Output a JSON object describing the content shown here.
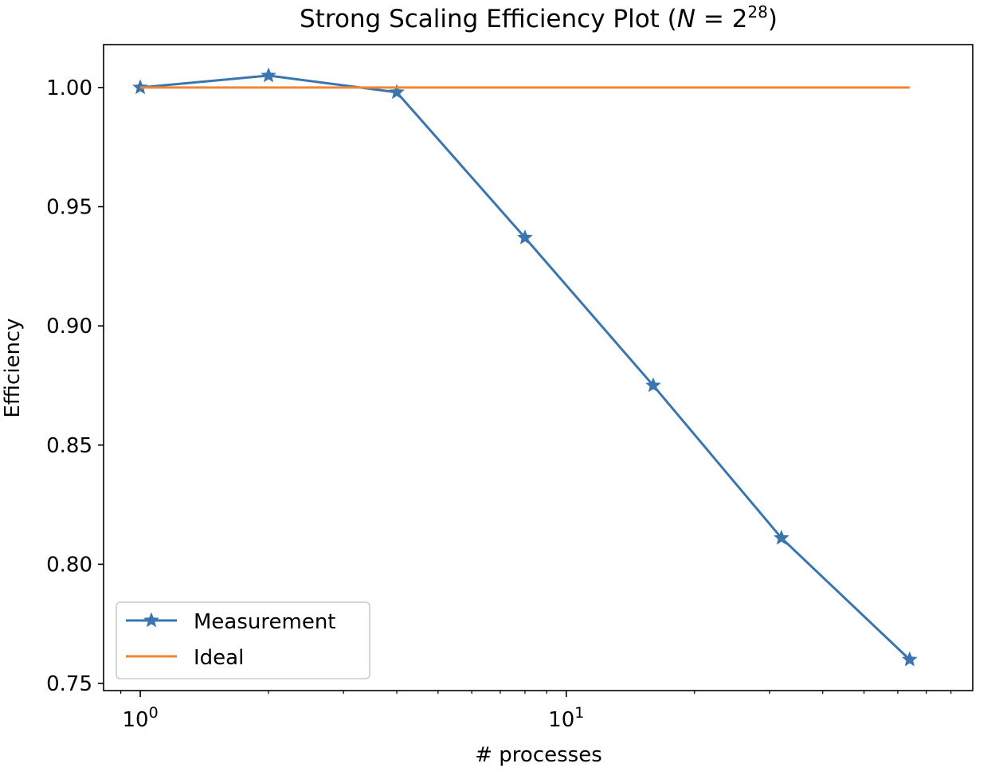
{
  "chart_data": {
    "type": "line",
    "title": {
      "prefix": "Strong Scaling Efficiency Plot (",
      "var": "N",
      "eq": " = 2",
      "exp": "28",
      "suffix": ")"
    },
    "xlabel": "# processes",
    "ylabel": "Efficiency",
    "xscale": "log",
    "xlim": [
      0.82,
      90
    ],
    "ylim": [
      0.747,
      1.018
    ],
    "xticks": [
      {
        "value": 1,
        "base": "10",
        "exp": "0"
      },
      {
        "value": 10,
        "base": "10",
        "exp": "1"
      }
    ],
    "yticks": [
      {
        "value": 0.75,
        "label": "0.75"
      },
      {
        "value": 0.8,
        "label": "0.80"
      },
      {
        "value": 0.85,
        "label": "0.85"
      },
      {
        "value": 0.9,
        "label": "0.90"
      },
      {
        "value": 0.95,
        "label": "0.95"
      },
      {
        "value": 1.0,
        "label": "1.00"
      }
    ],
    "grid": false,
    "legend_position": "lower-left",
    "series": [
      {
        "name": "Measurement",
        "color": "#3a75af",
        "marker": "star",
        "x": [
          1,
          2,
          4,
          8,
          16,
          32,
          64
        ],
        "y": [
          1.0,
          1.005,
          0.998,
          0.937,
          0.875,
          0.811,
          0.76
        ]
      },
      {
        "name": "Ideal",
        "color": "#ef8636",
        "marker": "none",
        "x": [
          1,
          64
        ],
        "y": [
          1.0,
          1.0
        ]
      }
    ]
  }
}
